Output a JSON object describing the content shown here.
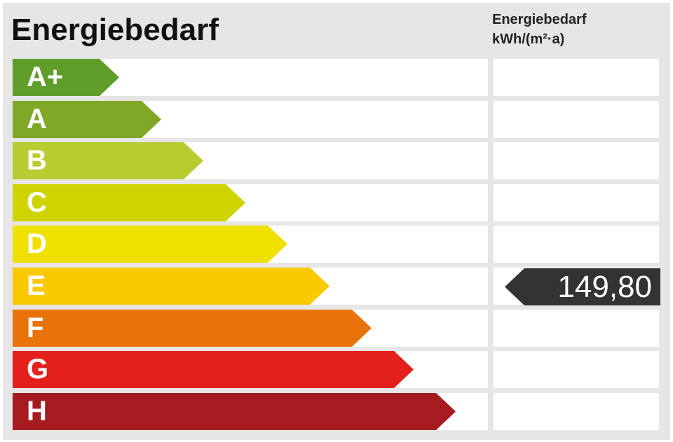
{
  "title": "Energiebedarf",
  "column_header": {
    "line1": "Energiebedarf",
    "line2": "kWh/(m²·a)"
  },
  "chart_data": {
    "type": "bar",
    "title": "Energiebedarf",
    "unit": "kWh/(m²·a)",
    "classes": [
      {
        "grade": "A+",
        "color": "#5f9e2a"
      },
      {
        "grade": "A",
        "color": "#7fa829"
      },
      {
        "grade": "B",
        "color": "#b8cc32"
      },
      {
        "grade": "C",
        "color": "#cfd400"
      },
      {
        "grade": "D",
        "color": "#f0e000"
      },
      {
        "grade": "E",
        "color": "#fbc900"
      },
      {
        "grade": "F",
        "color": "#e8730a"
      },
      {
        "grade": "G",
        "color": "#e3201c"
      },
      {
        "grade": "H",
        "color": "#a51b20"
      }
    ],
    "indicated_class": "E",
    "value": 149.8,
    "value_label": "149,80",
    "marker_color": "#333333"
  }
}
